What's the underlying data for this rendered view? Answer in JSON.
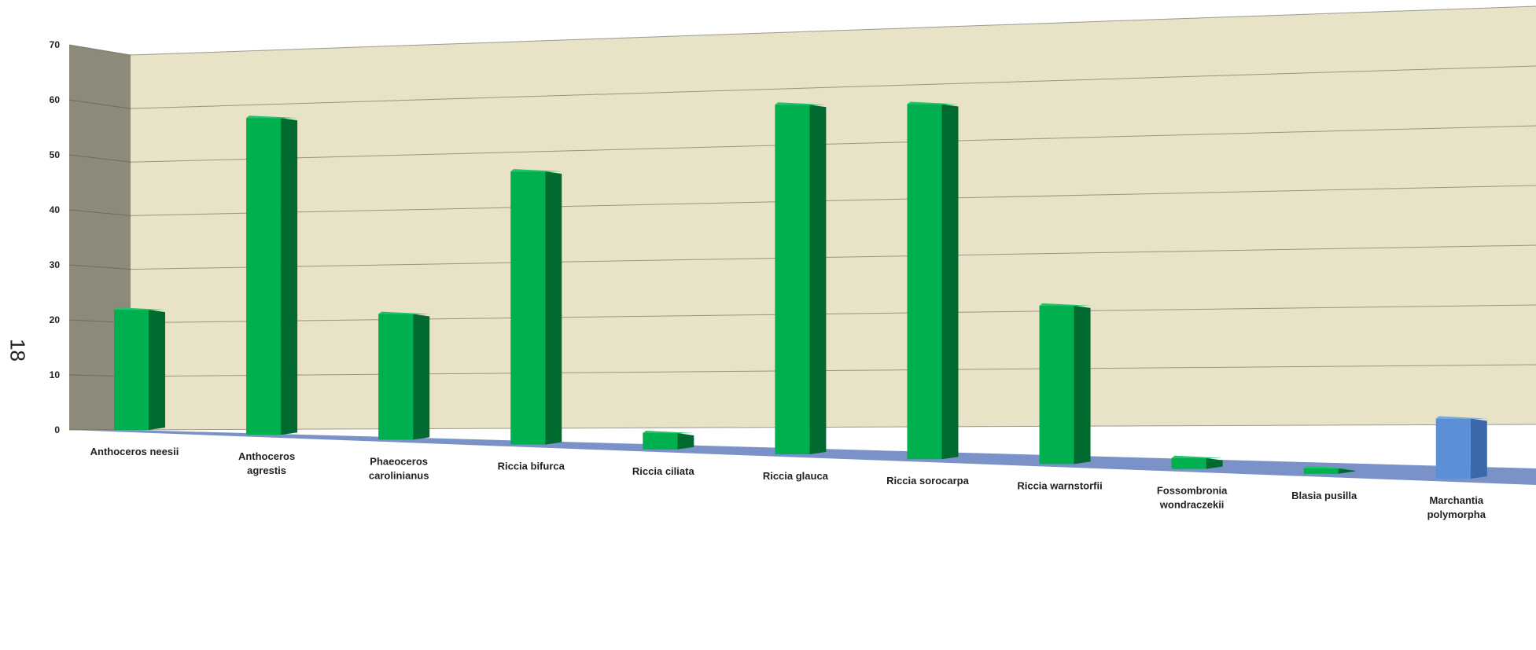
{
  "page": {
    "page_number": "18"
  },
  "chart_data": {
    "type": "bar",
    "title": "",
    "xlabel": "",
    "ylabel": "",
    "ylim": [
      0,
      70
    ],
    "yticks": [
      "0",
      "10",
      "20",
      "30",
      "40",
      "50",
      "60",
      "70"
    ],
    "grid": true,
    "legend": "none",
    "style": "3d-perspective",
    "categories": [
      [
        "Anthoceros neesii"
      ],
      [
        "Anthoceros",
        "agrestis"
      ],
      [
        "Phaeoceros",
        "carolinianus"
      ],
      [
        "Riccia bifurca"
      ],
      [
        "Riccia ciliata"
      ],
      [
        "Riccia glauca"
      ],
      [
        "Riccia sorocarpa"
      ],
      [
        "Riccia warnstorfii"
      ],
      [
        "Fossombronia",
        "wondraczekii"
      ],
      [
        "Blasia pusilla"
      ],
      [
        "Marchantia",
        "polymorpha"
      ]
    ],
    "values": [
      22,
      58,
      23,
      50,
      3,
      64,
      65,
      29,
      2,
      1,
      11
    ],
    "bar_colors": [
      "#00b04f",
      "#00b04f",
      "#00b04f",
      "#00b04f",
      "#00b04f",
      "#00b04f",
      "#00b04f",
      "#00b04f",
      "#00b04f",
      "#00b04f",
      "#5b8fd6"
    ],
    "colors": {
      "wall_back": "#e8e2c6",
      "wall_side": "#8d8a7a",
      "floor": "#7a92c8",
      "gridline": "#55534a",
      "bar_green_front": "#00b04f",
      "bar_green_side": "#006a30",
      "bar_green_top": "#1fc468",
      "bar_blue_front": "#5b8fd6",
      "bar_blue_side": "#3b68aa",
      "bar_blue_top": "#7da8e2"
    }
  }
}
